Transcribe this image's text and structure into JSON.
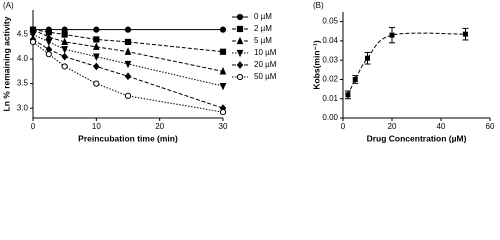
{
  "chart_data": [
    {
      "type": "line",
      "panel": "(A)",
      "xlabel": "Preincubation time (min)",
      "ylabel": "Ln % remaining activity",
      "x": [
        0,
        2.5,
        5,
        10,
        15,
        30
      ],
      "xlim": [
        0,
        30
      ],
      "xticks": [
        0,
        10,
        20,
        30
      ],
      "ylim": [
        2.8,
        5.0
      ],
      "yticks": [
        {
          "value": 3,
          "label": "3.0"
        },
        {
          "value": 3.5,
          "label": "3.5"
        },
        {
          "value": 4,
          "label": "4.0"
        },
        {
          "value": 4.5,
          "label": "4.5"
        }
      ],
      "series": [
        {
          "name": "0 µM",
          "color": "#000000",
          "marker": "circle",
          "linestyle": "solid",
          "values": [
            4.6,
            4.6,
            4.6,
            4.6,
            4.6,
            4.6
          ]
        },
        {
          "name": "2 µM",
          "color": "#000000",
          "marker": "square",
          "linestyle": "dashed",
          "values": [
            4.6,
            4.55,
            4.5,
            4.4,
            4.35,
            4.15
          ]
        },
        {
          "name": "5 µM",
          "color": "#000000",
          "marker": "triangle-up",
          "linestyle": "dashed",
          "values": [
            4.6,
            4.45,
            4.35,
            4.25,
            4.15,
            3.75
          ]
        },
        {
          "name": "10 µM",
          "color": "#000000",
          "marker": "triangle-down",
          "linestyle": "dotted",
          "values": [
            4.5,
            4.35,
            4.2,
            4.05,
            3.9,
            3.45
          ]
        },
        {
          "name": "20 µM",
          "color": "#000000",
          "marker": "diamond",
          "linestyle": "dashed",
          "values": [
            4.4,
            4.2,
            4.05,
            3.85,
            3.65,
            3.0
          ]
        },
        {
          "name": "50 µM",
          "color": "#000000",
          "marker": "open-circle",
          "linestyle": "dotted",
          "values": [
            4.35,
            4.1,
            3.85,
            3.5,
            3.25,
            2.92
          ]
        }
      ]
    },
    {
      "type": "scatter",
      "panel": "(B)",
      "xlabel": "Drug Concentration (µM)",
      "ylabel": "Kobs(min⁻¹)",
      "x": [
        2,
        5,
        10,
        20,
        50
      ],
      "values": [
        0.012,
        0.02,
        0.031,
        0.043,
        0.0435
      ],
      "errors": [
        0.002,
        0.002,
        0.003,
        0.004,
        0.003
      ],
      "color": "#000000",
      "fit_line": "dashed",
      "xlim": [
        0,
        60
      ],
      "xticks": [
        0,
        20,
        40,
        60
      ],
      "ylim": [
        0,
        0.055
      ],
      "yticks": [
        {
          "value": 0,
          "label": "0.00"
        },
        {
          "value": 0.01,
          "label": "0.01"
        },
        {
          "value": 0.02,
          "label": "0.02"
        },
        {
          "value": 0.03,
          "label": "0.03"
        },
        {
          "value": 0.04,
          "label": "0.04"
        },
        {
          "value": 0.05,
          "label": "0.05"
        }
      ]
    }
  ]
}
